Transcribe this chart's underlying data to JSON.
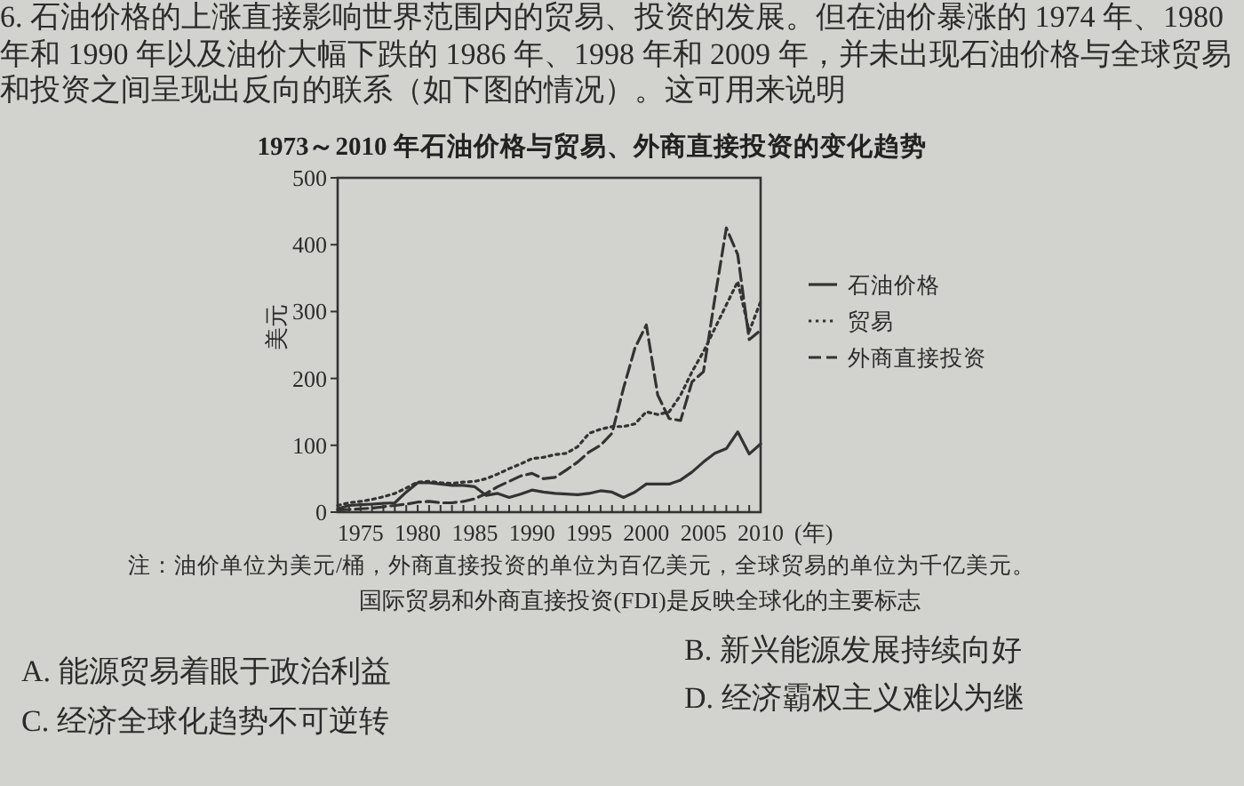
{
  "chart_data": {
    "type": "line",
    "title": "1973～2010 年石油价格与贸易、外商直接投资的变化趋势",
    "ylabel": "美元",
    "xlabel": "(年)",
    "x": [
      1973,
      1974,
      1975,
      1976,
      1977,
      1978,
      1979,
      1980,
      1981,
      1982,
      1983,
      1984,
      1985,
      1986,
      1987,
      1988,
      1989,
      1990,
      1991,
      1992,
      1993,
      1994,
      1995,
      1996,
      1997,
      1998,
      1999,
      2000,
      2001,
      2002,
      2003,
      2004,
      2005,
      2006,
      2007,
      2008,
      2009,
      2010
    ],
    "series": [
      {
        "name": "石油价格",
        "color": "#333333",
        "line_style": "solid",
        "values": [
          5,
          10,
          11,
          12,
          13,
          14,
          30,
          44,
          44,
          42,
          40,
          40,
          38,
          25,
          28,
          22,
          27,
          33,
          30,
          28,
          27,
          26,
          28,
          32,
          30,
          22,
          30,
          42,
          42,
          42,
          48,
          60,
          75,
          88,
          95,
          120,
          87,
          102
        ]
      },
      {
        "name": "贸易",
        "color": "#333333",
        "line_style": "dotted",
        "values": [
          10,
          14,
          16,
          19,
          23,
          28,
          36,
          45,
          46,
          44,
          43,
          45,
          46,
          50,
          57,
          65,
          72,
          80,
          82,
          86,
          88,
          98,
          118,
          124,
          128,
          128,
          132,
          150,
          146,
          150,
          175,
          210,
          240,
          275,
          310,
          345,
          270,
          315
        ]
      },
      {
        "name": "外商直接投资",
        "color": "#333333",
        "line_style": "dashed",
        "values": [
          3,
          4,
          5,
          6,
          8,
          10,
          12,
          15,
          16,
          14,
          14,
          16,
          20,
          28,
          38,
          46,
          54,
          58,
          50,
          52,
          63,
          75,
          90,
          100,
          118,
          185,
          245,
          280,
          175,
          140,
          137,
          195,
          210,
          320,
          425,
          385,
          258,
          272
        ]
      }
    ],
    "xlim": [
      1973,
      2010
    ],
    "xticks": [
      {
        "value": 1973,
        "label": null
      },
      {
        "value": 1974,
        "label": null
      },
      1975,
      {
        "value": 1976,
        "label": null
      },
      {
        "value": 1977,
        "label": null
      },
      {
        "value": 1978,
        "label": null
      },
      {
        "value": 1979,
        "label": null
      },
      1980,
      {
        "value": 1981,
        "label": null
      },
      {
        "value": 1982,
        "label": null
      },
      {
        "value": 1983,
        "label": null
      },
      {
        "value": 1984,
        "label": null
      },
      1985,
      {
        "value": 1986,
        "label": null
      },
      {
        "value": 1987,
        "label": null
      },
      {
        "value": 1988,
        "label": null
      },
      {
        "value": 1989,
        "label": null
      },
      1990,
      {
        "value": 1991,
        "label": null
      },
      {
        "value": 1992,
        "label": null
      },
      {
        "value": 1993,
        "label": null
      },
      {
        "value": 1994,
        "label": null
      },
      1995,
      {
        "value": 1996,
        "label": null
      },
      {
        "value": 1997,
        "label": null
      },
      {
        "value": 1998,
        "label": null
      },
      {
        "value": 1999,
        "label": null
      },
      2000,
      {
        "value": 2001,
        "label": null
      },
      {
        "value": 2002,
        "label": null
      },
      {
        "value": 2003,
        "label": null
      },
      {
        "value": 2004,
        "label": null
      },
      2005,
      {
        "value": 2006,
        "label": null
      },
      {
        "value": 2007,
        "label": null
      },
      {
        "value": 2008,
        "label": null
      },
      {
        "value": 2009,
        "label": null
      },
      2010
    ],
    "ylim": [
      0,
      500
    ],
    "yticks": [
      0,
      100,
      200,
      300,
      400,
      500
    ],
    "legend": "right",
    "annotations": [
      "6. 石油价格的上涨直接影响世界范围内的贸易、投资的发展。但在油价暴涨的 1974 年、1980 年和 1990 年以及油价大幅下跌的 1986 年、1998 年和 2009 年，并未出现石油价格与全球贸易和投资之间呈现出反向的联系（如下图的情况）。这可用来说明",
      "注：油价单位为美元/桶，外商直接投资的单位为百亿美元，全球贸易的单位为千亿美元。",
      "国际贸易和外商直接投资(FDI)是反映全球化的主要标志",
      "A. 能源贸易着眼于政治利益",
      "B. 新兴能源发展持续向好",
      "C. 经济全球化趋势不可逆转",
      "D. 经济霸权主义难以为继"
    ]
  }
}
